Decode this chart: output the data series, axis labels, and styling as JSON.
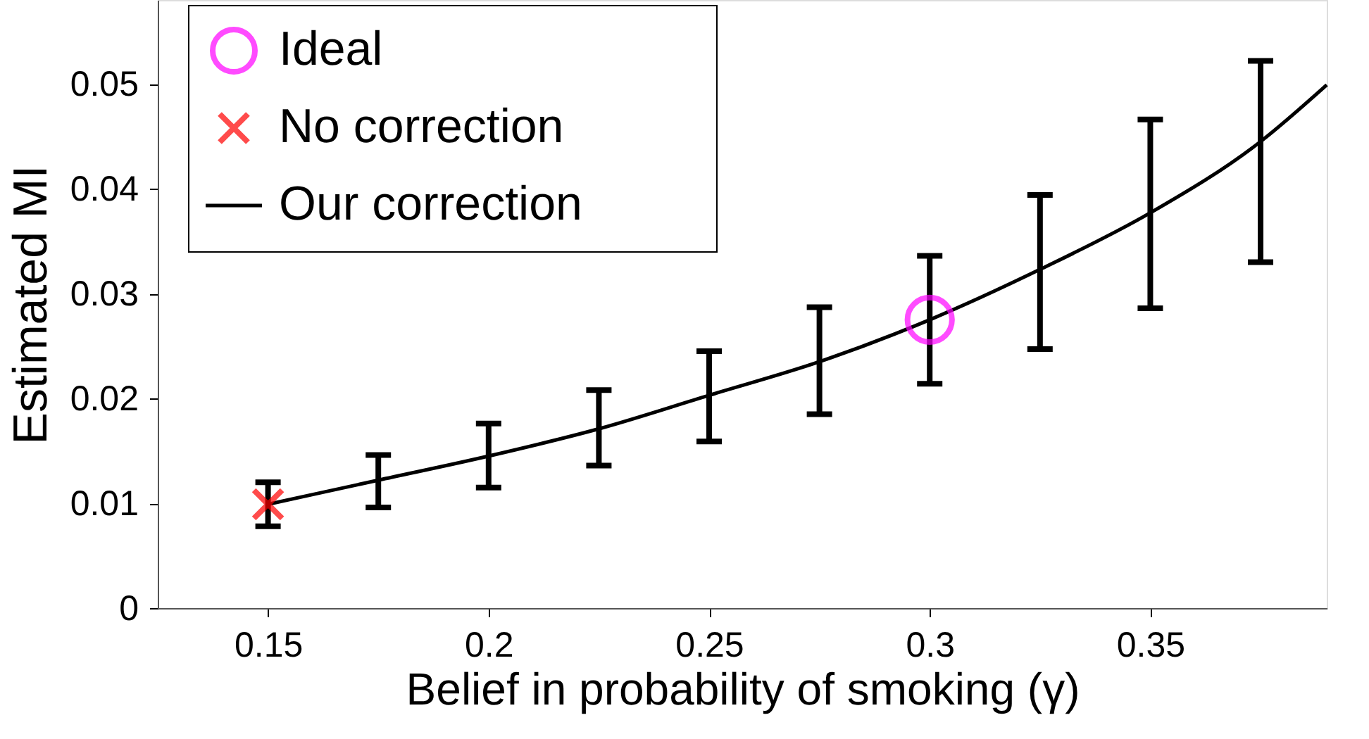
{
  "chart_data": {
    "type": "line",
    "xlabel": "Belief in probability of smoking (γ)",
    "ylabel": "Estimated MI",
    "xlim": [
      0.125,
      0.39
    ],
    "ylim": [
      0,
      0.058
    ],
    "xticks": [
      0.15,
      0.2,
      0.25,
      0.3,
      0.35
    ],
    "yticks": [
      0,
      0.01,
      0.02,
      0.03,
      0.04,
      0.05
    ],
    "legend": "top left",
    "grid": false,
    "series": [
      {
        "name": "Ideal",
        "type": "scatter",
        "marker": "circle",
        "color": "#ff00ff",
        "x": [
          0.3
        ],
        "values": [
          0.0275
        ]
      },
      {
        "name": "No correction",
        "type": "scatter",
        "marker": "cross",
        "color": "#ff0000",
        "x": [
          0.15
        ],
        "values": [
          0.0099
        ]
      },
      {
        "name": "Our correction",
        "marker": "none",
        "color": "#000000",
        "x": [
          0.15,
          0.175,
          0.2,
          0.225,
          0.25,
          0.275,
          0.3,
          0.325,
          0.35,
          0.375,
          0.39
        ],
        "values": [
          0.0099,
          0.0122,
          0.0145,
          0.0171,
          0.0203,
          0.0235,
          0.0275,
          0.0323,
          0.0377,
          0.0445,
          0.0499
        ],
        "errors": [
          [
            0.0078,
            0.012
          ],
          [
            0.0096,
            0.0146
          ],
          [
            0.0115,
            0.0176
          ],
          [
            0.0136,
            0.0208
          ],
          [
            0.0159,
            0.0245
          ],
          [
            0.0185,
            0.0287
          ],
          [
            0.0214,
            0.0336
          ],
          [
            0.0247,
            0.0394
          ],
          [
            0.0286,
            0.0466
          ],
          [
            0.033,
            0.0522
          ],
          null
        ]
      }
    ]
  }
}
